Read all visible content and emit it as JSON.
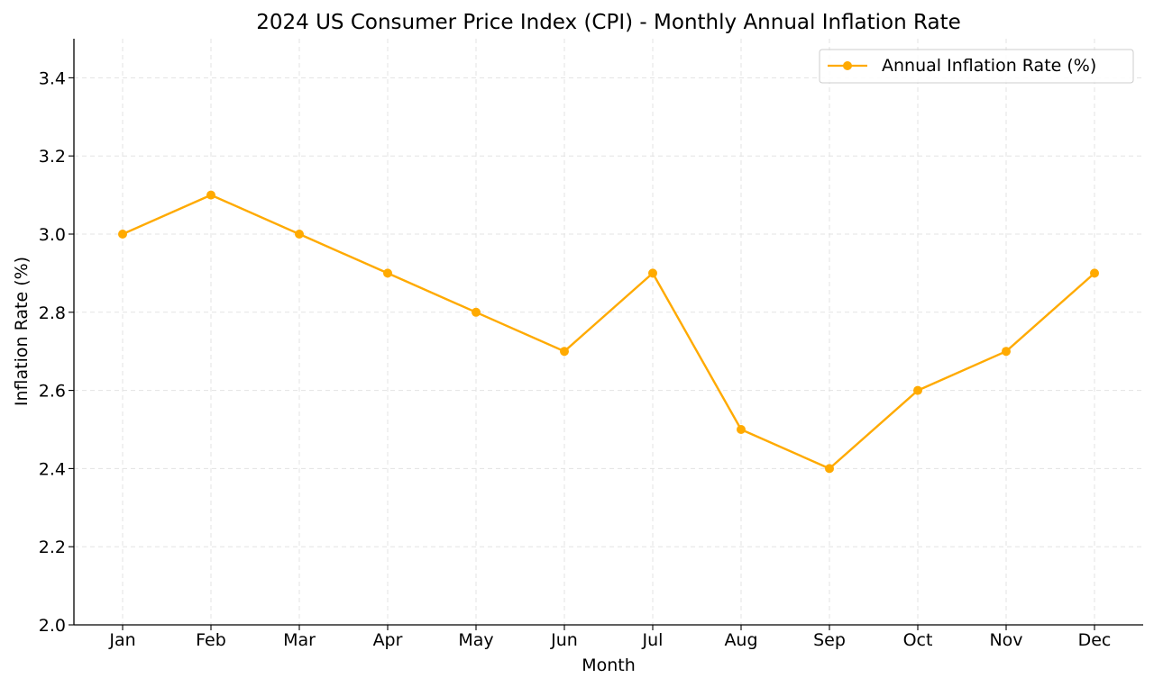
{
  "chart_data": {
    "type": "line",
    "title": "2024 US Consumer Price Index (CPI) - Monthly Annual Inflation Rate",
    "xlabel": "Month",
    "ylabel": "Inflation Rate (%)",
    "categories": [
      "Jan",
      "Feb",
      "Mar",
      "Apr",
      "May",
      "Jun",
      "Jul",
      "Aug",
      "Sep",
      "Oct",
      "Nov",
      "Dec"
    ],
    "series": [
      {
        "name": "Annual Inflation Rate (%)",
        "values": [
          3.0,
          3.1,
          3.0,
          2.9,
          2.8,
          2.7,
          2.9,
          2.5,
          2.4,
          2.6,
          2.7,
          2.9
        ],
        "color": "#FFAA00",
        "marker": "circle"
      }
    ],
    "ylim": [
      2.0,
      3.5
    ],
    "yticks": [
      "2.0",
      "2.2",
      "2.4",
      "2.6",
      "2.8",
      "3.0",
      "3.2",
      "3.4"
    ],
    "grid": true,
    "legend_position": "top-right"
  }
}
